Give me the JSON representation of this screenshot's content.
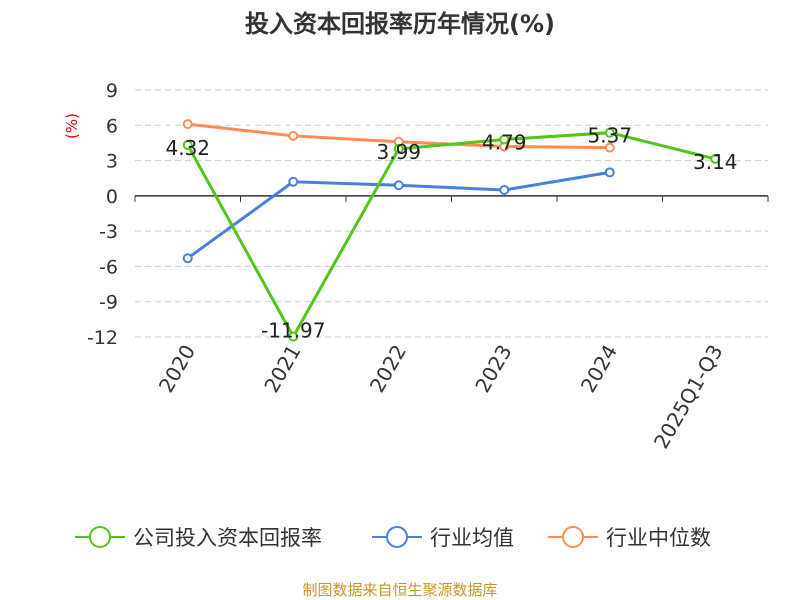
{
  "chart_data": {
    "type": "line",
    "title": "投入资本回报率历年情况(%)",
    "ylabel": "(%)",
    "xlabel": "",
    "categories": [
      "2020",
      "2021",
      "2022",
      "2023",
      "2024",
      "2025Q1-Q3"
    ],
    "ylim": [
      -12,
      9
    ],
    "yticks": [
      9,
      6,
      3,
      0,
      -3,
      -6,
      -9,
      -12
    ],
    "ytick_labels": [
      "9",
      "6",
      "3",
      "0",
      "-3",
      "-6",
      "-9",
      "-12"
    ],
    "grid": true,
    "legend_position": "bottom",
    "series": [
      {
        "name": "公司投入资本回报率",
        "color": "#52c41a",
        "values": [
          4.32,
          -11.97,
          3.99,
          4.79,
          5.37,
          3.14
        ],
        "labels": [
          "4.32",
          "-11.97",
          "3.99",
          "4.79",
          "5.37",
          "3.14"
        ]
      },
      {
        "name": "行业均值",
        "color": "#4a7fe0",
        "values": [
          -5.3,
          1.2,
          0.9,
          0.5,
          2.0,
          null
        ]
      },
      {
        "name": "行业中位数",
        "color": "#ff8c55",
        "values": [
          6.1,
          5.1,
          4.6,
          4.2,
          4.1,
          null
        ]
      }
    ]
  },
  "footer": "制图数据来自恒生聚源数据库"
}
